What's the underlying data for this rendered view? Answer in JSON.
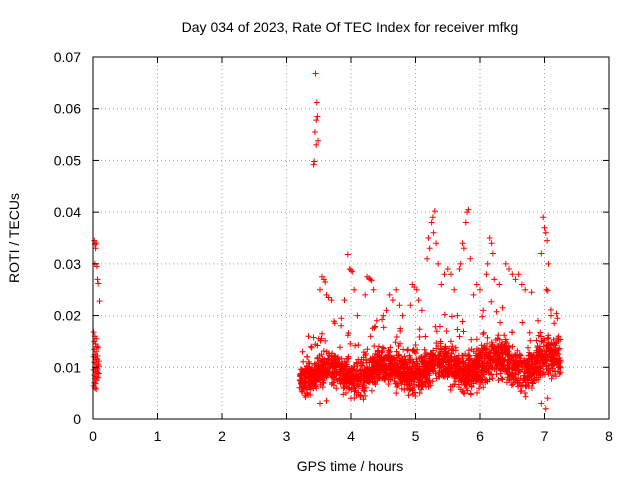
{
  "chart_data": {
    "type": "scatter",
    "title": "Day 034 of 2023, Rate Of TEC Index for receiver mfkg",
    "xlabel": "GPS time / hours",
    "ylabel": "ROTI / TECUs",
    "xlim": [
      0,
      8
    ],
    "ylim": [
      0,
      0.07
    ],
    "xticks": [
      0,
      1,
      2,
      3,
      4,
      5,
      6,
      7,
      8
    ],
    "yticks": [
      0,
      0.01,
      0.02,
      0.03,
      0.04,
      0.05,
      0.06,
      0.07
    ],
    "xtick_labels": [
      "0",
      "1",
      "2",
      "3",
      "4",
      "5",
      "6",
      "7",
      "8"
    ],
    "ytick_labels": [
      "0",
      "0.01",
      "0.02",
      "0.03",
      "0.04",
      "0.05",
      "0.06",
      "0.07"
    ],
    "grid": true,
    "marker": "+",
    "color": "#ff0000",
    "series": [
      {
        "name": "ROTI",
        "points": [
          [
            0.02,
            0.0345
          ],
          [
            0.03,
            0.0338
          ],
          [
            0.04,
            0.033
          ],
          [
            0.05,
            0.034
          ],
          [
            0.03,
            0.03
          ],
          [
            0.06,
            0.0295
          ],
          [
            0.07,
            0.027
          ],
          [
            0.08,
            0.0262
          ],
          [
            0.1,
            0.0228
          ],
          [
            0.01,
            0.0168
          ],
          [
            0.03,
            0.016
          ],
          [
            0.05,
            0.0155
          ],
          [
            0.02,
            0.015
          ],
          [
            0.04,
            0.0145
          ],
          [
            0.06,
            0.014
          ],
          [
            0.08,
            0.0138
          ],
          [
            0.02,
            0.0135
          ],
          [
            0.05,
            0.013
          ],
          [
            0.03,
            0.0125
          ],
          [
            0.07,
            0.0122
          ],
          [
            0.01,
            0.012
          ],
          [
            0.04,
            0.0118
          ],
          [
            0.06,
            0.0115
          ],
          [
            0.09,
            0.0112
          ],
          [
            0.02,
            0.011
          ],
          [
            0.05,
            0.0108
          ],
          [
            0.08,
            0.0105
          ],
          [
            0.03,
            0.01
          ],
          [
            0.06,
            0.0098
          ],
          [
            0.01,
            0.0095
          ],
          [
            0.04,
            0.0092
          ],
          [
            0.07,
            0.009
          ],
          [
            0.09,
            0.0088
          ],
          [
            0.02,
            0.0085
          ],
          [
            0.05,
            0.0082
          ],
          [
            0.08,
            0.008
          ],
          [
            0.03,
            0.0078
          ],
          [
            0.06,
            0.0075
          ],
          [
            0.02,
            0.007
          ],
          [
            0.04,
            0.0068
          ],
          [
            0.01,
            0.0064
          ],
          [
            0.03,
            0.006
          ],
          [
            0.05,
            0.0058
          ],
          [
            0.07,
            0.0095
          ],
          [
            0.09,
            0.0102
          ],
          [
            3.45,
            0.0668
          ],
          [
            3.47,
            0.0612
          ],
          [
            3.48,
            0.0585
          ],
          [
            3.46,
            0.0578
          ],
          [
            3.44,
            0.0555
          ],
          [
            3.49,
            0.0538
          ],
          [
            3.46,
            0.053
          ],
          [
            3.43,
            0.0498
          ],
          [
            3.42,
            0.0492
          ],
          [
            5.2,
            0.035
          ],
          [
            5.25,
            0.038
          ],
          [
            5.27,
            0.039
          ],
          [
            5.3,
            0.0402
          ],
          [
            5.22,
            0.033
          ],
          [
            5.28,
            0.036
          ],
          [
            5.32,
            0.034
          ],
          [
            5.18,
            0.031
          ],
          [
            5.35,
            0.03
          ],
          [
            5.7,
            0.03
          ],
          [
            5.75,
            0.033
          ],
          [
            5.78,
            0.038
          ],
          [
            5.8,
            0.04
          ],
          [
            5.82,
            0.0405
          ],
          [
            5.73,
            0.034
          ],
          [
            5.85,
            0.031
          ],
          [
            5.68,
            0.029
          ],
          [
            6.15,
            0.035
          ],
          [
            6.18,
            0.034
          ],
          [
            6.2,
            0.032
          ],
          [
            6.12,
            0.03
          ],
          [
            6.1,
            0.028
          ],
          [
            6.22,
            0.027
          ],
          [
            6.3,
            0.026
          ],
          [
            6.98,
            0.039
          ],
          [
            7.0,
            0.037
          ],
          [
            7.02,
            0.036
          ],
          [
            7.04,
            0.0345
          ],
          [
            6.95,
            0.032
          ],
          [
            7.06,
            0.03
          ],
          [
            7.03,
            0.025
          ],
          [
            7.05,
            0.0248
          ],
          [
            3.95,
            0.0318
          ],
          [
            3.98,
            0.029
          ],
          [
            4.0,
            0.0288
          ],
          [
            4.02,
            0.0285
          ],
          [
            4.05,
            0.025
          ],
          [
            3.9,
            0.023
          ],
          [
            4.25,
            0.0275
          ],
          [
            4.28,
            0.0272
          ],
          [
            4.3,
            0.027
          ],
          [
            4.32,
            0.0268
          ],
          [
            4.35,
            0.025
          ],
          [
            4.22,
            0.024
          ],
          [
            3.55,
            0.0275
          ],
          [
            3.58,
            0.027
          ],
          [
            3.6,
            0.0265
          ],
          [
            3.62,
            0.024
          ],
          [
            3.65,
            0.0235
          ],
          [
            3.7,
            0.023
          ],
          [
            3.52,
            0.025
          ],
          [
            4.95,
            0.026
          ],
          [
            4.98,
            0.0255
          ],
          [
            5.02,
            0.025
          ],
          [
            5.05,
            0.023
          ],
          [
            4.92,
            0.022
          ],
          [
            6.4,
            0.03
          ],
          [
            6.45,
            0.029
          ],
          [
            6.5,
            0.028
          ],
          [
            6.55,
            0.027
          ],
          [
            6.6,
            0.028
          ],
          [
            6.65,
            0.026
          ],
          [
            6.7,
            0.025
          ],
          [
            6.8,
            0.0245
          ],
          [
            5.45,
            0.028
          ],
          [
            5.5,
            0.029
          ],
          [
            5.55,
            0.028
          ],
          [
            5.4,
            0.026
          ],
          [
            5.6,
            0.025
          ],
          [
            5.9,
            0.024
          ],
          [
            5.95,
            0.026
          ],
          [
            6.0,
            0.025
          ],
          [
            4.6,
            0.024
          ],
          [
            4.65,
            0.023
          ],
          [
            4.7,
            0.025
          ],
          [
            4.75,
            0.022
          ],
          [
            4.55,
            0.021
          ],
          [
            4.5,
            0.02
          ],
          [
            3.25,
            0.013
          ],
          [
            3.32,
            0.012
          ],
          [
            3.38,
            0.014
          ],
          [
            3.5,
            0.0155
          ],
          [
            3.55,
            0.0165
          ],
          [
            3.75,
            0.0185
          ],
          [
            3.85,
            0.0195
          ],
          [
            4.1,
            0.02
          ],
          [
            4.4,
            0.019
          ],
          [
            4.8,
            0.02
          ],
          [
            5.1,
            0.021
          ],
          [
            5.65,
            0.02
          ],
          [
            6.05,
            0.021
          ],
          [
            6.35,
            0.0215
          ],
          [
            6.9,
            0.019
          ],
          [
            7.1,
            0.02
          ],
          [
            7.15,
            0.0185
          ],
          [
            7.2,
            0.0195
          ],
          [
            3.52,
            0.003
          ],
          [
            3.62,
            0.0035
          ],
          [
            4.0,
            0.004
          ],
          [
            4.15,
            0.0045
          ],
          [
            4.7,
            0.005
          ],
          [
            6.95,
            0.003
          ],
          [
            7.02,
            0.002
          ],
          [
            7.05,
            0.004
          ]
        ]
      }
    ],
    "band": {
      "note": "dense cluster of ROTI values between 3.2 h and 7.25 h",
      "x_range": [
        3.2,
        7.25
      ],
      "y_typical_range": [
        0.004,
        0.018
      ],
      "count": 2200
    }
  }
}
